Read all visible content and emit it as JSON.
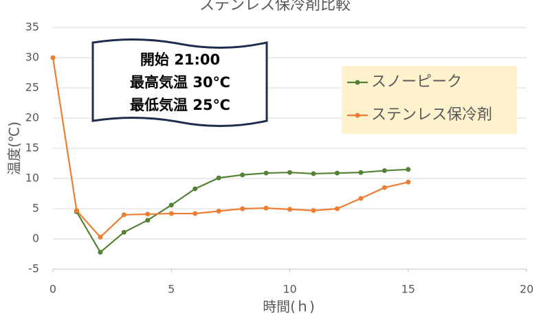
{
  "chart_data": {
    "type": "line",
    "title": "ステンレス保冷剤比較",
    "x_label": "時間(ｈ)",
    "y_label": "温度(℃)",
    "x": [
      0,
      1,
      2,
      3,
      4,
      5,
      6,
      7,
      8,
      9,
      10,
      11,
      12,
      13,
      14,
      15
    ],
    "series": [
      {
        "name": "スノーピーク",
        "color": "#548235",
        "values": [
          null,
          4.5,
          -2.2,
          1.1,
          3.1,
          5.6,
          8.3,
          10.1,
          10.6,
          10.9,
          11.0,
          10.8,
          10.9,
          11.0,
          11.3,
          11.5
        ]
      },
      {
        "name": "ステンレス保冷剤",
        "color": "#ed7d31",
        "values": [
          30,
          4.7,
          0.3,
          4.0,
          4.1,
          4.2,
          4.2,
          4.6,
          5.0,
          5.1,
          4.9,
          4.7,
          5.0,
          6.7,
          8.5,
          9.4
        ]
      }
    ],
    "xlim": [
      0,
      20
    ],
    "xticks": [
      0,
      5,
      10,
      15,
      20
    ],
    "ylim": [
      -5,
      35
    ],
    "yticks": [
      -5,
      0,
      5,
      10,
      15,
      20,
      25,
      30,
      35
    ],
    "grid": true,
    "annotation": [
      "開始 21:00",
      "最高気温 30℃",
      "最低気温 25℃"
    ]
  }
}
